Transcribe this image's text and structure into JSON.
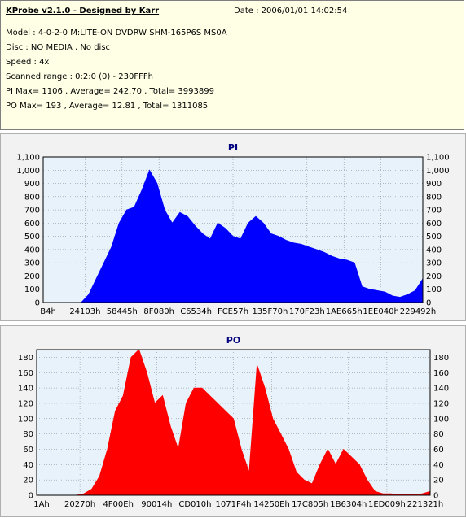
{
  "header": {
    "title": "KProbe v2.1.0 - Designed by Karr",
    "date": "Date : 2006/01/01 14:02:54",
    "model": "Model : 4-0-2-0 M:LITE-ON DVDRW SHM-165P6S MS0A",
    "disc": "Disc : NO MEDIA , No disc",
    "speed": "Speed : 4x",
    "scanned_range": "Scanned range : 0:2:0 (0) - 230FFFh",
    "pi_stats": "PI Max= 1106 , Average= 242.70 , Total= 3993899",
    "po_stats": "PO Max= 193 , Average= 12.81 , Total= 1311085"
  },
  "colors": {
    "pi_series": "#0000ff",
    "po_series": "#ff0000",
    "plot_background": "#e8f2fb",
    "header_background": "#ffffe6",
    "panel_background": "#f2f2f2"
  },
  "chart_data": [
    {
      "type": "area",
      "title": "PI",
      "xlabel": "",
      "ylabel": "",
      "ylim": [
        0,
        1100
      ],
      "yticks": [
        "0",
        "100",
        "200",
        "300",
        "400",
        "500",
        "600",
        "700",
        "800",
        "900",
        "1,000",
        "1,100"
      ],
      "xtick_labels": [
        "B4h",
        "24103h",
        "58445h",
        "8F080h",
        "C6534h",
        "FCE57h",
        "135F70h",
        "170F23h",
        "1AE665h",
        "1EE040h",
        "229492h"
      ],
      "legend": "none",
      "grid": true,
      "series": [
        {
          "name": "PI",
          "x_fraction": [
            0.0,
            0.05,
            0.1,
            0.12,
            0.14,
            0.16,
            0.18,
            0.2,
            0.22,
            0.24,
            0.26,
            0.28,
            0.3,
            0.32,
            0.34,
            0.36,
            0.38,
            0.4,
            0.42,
            0.44,
            0.46,
            0.48,
            0.5,
            0.52,
            0.54,
            0.56,
            0.58,
            0.6,
            0.62,
            0.64,
            0.66,
            0.68,
            0.7,
            0.72,
            0.74,
            0.76,
            0.78,
            0.8,
            0.82,
            0.84,
            0.86,
            0.88,
            0.9,
            0.92,
            0.94,
            0.96,
            0.98,
            1.0
          ],
          "values": [
            0,
            0,
            0,
            60,
            180,
            300,
            420,
            600,
            700,
            720,
            850,
            1000,
            900,
            700,
            600,
            680,
            650,
            580,
            520,
            480,
            600,
            560,
            500,
            480,
            600,
            650,
            600,
            520,
            500,
            470,
            450,
            440,
            420,
            400,
            380,
            350,
            330,
            320,
            300,
            120,
            100,
            90,
            80,
            50,
            40,
            60,
            90,
            180
          ]
        }
      ]
    },
    {
      "type": "area",
      "title": "PO",
      "xlabel": "",
      "ylabel": "",
      "ylim": [
        0,
        190
      ],
      "yticks": [
        "0",
        "20",
        "40",
        "60",
        "80",
        "100",
        "120",
        "140",
        "160",
        "180"
      ],
      "xtick_labels": [
        "1Ah",
        "20270h",
        "4F00Eh",
        "90014h",
        "CD010h",
        "1071F4h",
        "14250Eh",
        "17C805h",
        "1B6304h",
        "1ED009h",
        "221321h"
      ],
      "legend": "none",
      "grid": true,
      "series": [
        {
          "name": "PO",
          "x_fraction": [
            0.0,
            0.05,
            0.1,
            0.12,
            0.14,
            0.16,
            0.18,
            0.2,
            0.22,
            0.24,
            0.26,
            0.28,
            0.3,
            0.32,
            0.34,
            0.36,
            0.38,
            0.4,
            0.42,
            0.44,
            0.46,
            0.48,
            0.5,
            0.52,
            0.54,
            0.56,
            0.58,
            0.6,
            0.62,
            0.64,
            0.66,
            0.68,
            0.7,
            0.72,
            0.74,
            0.76,
            0.78,
            0.8,
            0.82,
            0.84,
            0.86,
            0.88,
            0.9,
            0.92,
            0.94,
            0.96,
            0.98,
            1.0
          ],
          "values": [
            0,
            0,
            0,
            2,
            8,
            25,
            60,
            110,
            130,
            180,
            190,
            160,
            120,
            130,
            90,
            60,
            120,
            140,
            140,
            130,
            120,
            110,
            100,
            60,
            30,
            170,
            140,
            100,
            80,
            60,
            30,
            20,
            15,
            40,
            60,
            40,
            60,
            50,
            40,
            20,
            5,
            2,
            2,
            1,
            1,
            1,
            2,
            5
          ]
        }
      ]
    }
  ]
}
